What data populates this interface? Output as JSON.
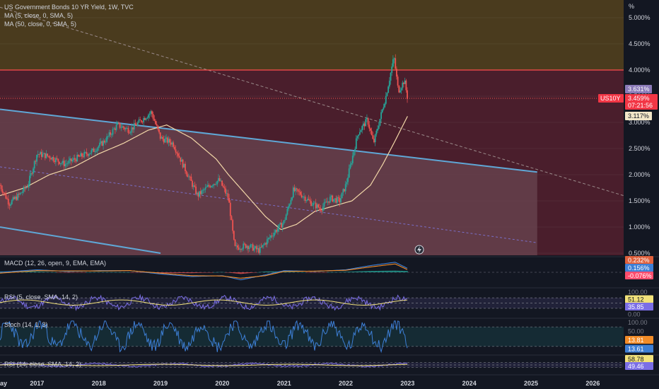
{
  "header": {
    "title": "US Government Bonds 10 YR Yield, 1W, TVC",
    "ma5_label": "MA (5, close, 0, SMA, 5)",
    "ma50_label": "MA (50, close, 0, SMA, 5)"
  },
  "indicators": {
    "macd_label": "MACD (12, 26, open, 9, EMA, EMA)",
    "rsi1_label": "RSI (5, close, SMA, 14, 2)",
    "stoch_label": "Stoch (14, 1, 3)",
    "rsi2_label": "RSI (14, close, SMA, 14, 2)"
  },
  "colors": {
    "background": "#131722",
    "upper_zone": "#4a3b1e",
    "lower_zone": "#4a1e2c",
    "channel_fill": "#6a4550",
    "channel_line": "#5fa7d6",
    "resistance": "#ff4d4d",
    "up_candle": "#26a69a",
    "down_candle": "#ef5350",
    "ma50": "#f2d7a8",
    "grid": "#2a2e39"
  },
  "chart_data": [
    {
      "type": "line",
      "name": "price",
      "unit": "%",
      "symbol_badge": "US10Y",
      "last_value_label": "3.459%",
      "countdown": "07:21:56",
      "ma5_value_label": "3.631%",
      "ma50_value_label": "3.117%",
      "y_axis_unit_label": "%",
      "y_ticks": [
        "5.000%",
        "4.500%",
        "4.000%",
        "3.500%",
        "3.000%",
        "2.500%",
        "2.000%",
        "1.500%",
        "1.000%",
        "0.500%"
      ],
      "y_tick_values": [
        5.0,
        4.5,
        4.0,
        3.5,
        3.0,
        2.5,
        2.0,
        1.5,
        1.0,
        0.5
      ],
      "ylim": [
        0.5,
        5.2
      ],
      "x_ticks": [
        "ay",
        "2017",
        "2018",
        "2019",
        "2020",
        "2021",
        "2022",
        "2023",
        "2024",
        "2025",
        "2026"
      ],
      "x_tick_values": [
        2016.35,
        2017.0,
        2018.0,
        2019.0,
        2020.0,
        2021.0,
        2022.0,
        2023.0,
        2024.0,
        2025.0,
        2026.0
      ],
      "xlim": [
        2016.4,
        2026.5
      ],
      "price_path": {
        "x": [
          2016.4,
          2016.55,
          2016.7,
          2016.85,
          2017.0,
          2017.2,
          2017.45,
          2017.7,
          2017.9,
          2018.1,
          2018.3,
          2018.5,
          2018.7,
          2018.85,
          2019.0,
          2019.2,
          2019.4,
          2019.6,
          2019.8,
          2019.95,
          2020.1,
          2020.2,
          2020.4,
          2020.6,
          2020.8,
          2021.0,
          2021.15,
          2021.25,
          2021.45,
          2021.6,
          2021.75,
          2021.9,
          2022.0,
          2022.1,
          2022.2,
          2022.35,
          2022.45,
          2022.55,
          2022.65,
          2022.78,
          2022.85,
          2022.95,
          2023.0
        ],
        "y": [
          1.8,
          1.45,
          1.6,
          1.8,
          2.4,
          2.35,
          2.2,
          2.35,
          2.45,
          2.65,
          2.95,
          2.85,
          3.05,
          3.2,
          2.7,
          2.6,
          2.1,
          1.6,
          1.8,
          1.9,
          1.55,
          0.6,
          0.65,
          0.55,
          0.85,
          1.1,
          1.7,
          1.65,
          1.45,
          1.35,
          1.55,
          1.5,
          1.8,
          2.3,
          2.8,
          3.05,
          2.6,
          3.05,
          3.5,
          4.25,
          3.6,
          3.8,
          3.459
        ]
      },
      "ma50_path": {
        "x": [
          2016.4,
          2016.8,
          2017.2,
          2017.6,
          2018.0,
          2018.4,
          2018.8,
          2019.1,
          2019.5,
          2019.9,
          2020.1,
          2020.4,
          2020.7,
          2020.95,
          2021.2,
          2021.5,
          2021.8,
          2022.1,
          2022.4,
          2022.6,
          2022.8,
          2023.0
        ],
        "y": [
          1.6,
          1.75,
          2.0,
          2.15,
          2.4,
          2.6,
          2.85,
          2.95,
          2.7,
          2.3,
          2.0,
          1.6,
          1.2,
          0.95,
          1.05,
          1.3,
          1.4,
          1.5,
          1.8,
          2.2,
          2.65,
          3.117
        ]
      },
      "horizontal_levels": {
        "resistance": 4.0,
        "last_price": 3.459
      },
      "channel": {
        "upper": {
          "x": [
            2016.4,
            2025.1
          ],
          "y": [
            3.25,
            2.05
          ]
        },
        "lower": {
          "x": [
            2016.4,
            2019.0
          ],
          "y": [
            1.0,
            0.5
          ]
        },
        "mid": {
          "x": [
            2016.4,
            2025.1
          ],
          "y": [
            2.15,
            0.7
          ]
        },
        "right_edge": 2025.1
      },
      "trendline_dashed": {
        "x": [
          2016.4,
          2026.5
        ],
        "y": [
          5.2,
          1.6
        ]
      },
      "zones": {
        "upper_from": 4.0,
        "lower_to": 4.0
      }
    },
    {
      "type": "line",
      "name": "MACD",
      "value_labels": [
        "0.232%",
        "0.156%",
        "-0.076%"
      ],
      "label_colors": [
        "#e0603c",
        "#3d7fd6",
        "#ff4d6d"
      ],
      "ylim": [
        -0.8,
        0.8
      ],
      "macd": {
        "x": [
          2016.4,
          2017.0,
          2017.5,
          2018.0,
          2018.5,
          2019.0,
          2019.5,
          2020.0,
          2020.3,
          2020.7,
          2021.0,
          2021.5,
          2022.0,
          2022.4,
          2022.8,
          2023.0
        ],
        "y": [
          0.0,
          0.15,
          0.05,
          0.1,
          0.1,
          -0.1,
          -0.25,
          -0.2,
          -0.45,
          -0.15,
          0.1,
          0.05,
          0.15,
          0.4,
          0.6,
          0.232
        ]
      },
      "signal": {
        "x": [
          2016.4,
          2017.0,
          2017.5,
          2018.0,
          2018.5,
          2019.0,
          2019.5,
          2020.0,
          2020.3,
          2020.7,
          2021.0,
          2021.5,
          2022.0,
          2022.4,
          2022.8,
          2023.0
        ],
        "y": [
          -0.05,
          0.1,
          0.08,
          0.08,
          0.1,
          -0.05,
          -0.2,
          -0.22,
          -0.35,
          -0.2,
          0.05,
          0.07,
          0.12,
          0.32,
          0.5,
          0.156
        ]
      }
    },
    {
      "type": "line",
      "name": "RSI (5)",
      "levels_printed": [
        "100.00",
        "51.12",
        "35.85",
        "0.00"
      ],
      "label_colors": [
        "#131722",
        "#f2e27a",
        "#7b6ee6",
        "#131722"
      ],
      "ylim": [
        0,
        100
      ],
      "bands": [
        70,
        50,
        30
      ]
    },
    {
      "type": "line",
      "name": "Stoch",
      "levels_printed": [
        "100.00",
        "50.00",
        "13.81",
        "13.61"
      ],
      "label_colors": [
        "#131722",
        "#131722",
        "#f28c28",
        "#3d7fd6"
      ],
      "ylim": [
        0,
        100
      ],
      "bands": [
        80,
        20
      ]
    },
    {
      "type": "line",
      "name": "RSI (14)",
      "levels_printed": [
        "58.78",
        "49.46"
      ],
      "label_colors": [
        "#f2e27a",
        "#7b6ee6"
      ],
      "ylim": [
        20,
        80
      ],
      "bands": [
        60,
        50,
        40
      ]
    }
  ]
}
